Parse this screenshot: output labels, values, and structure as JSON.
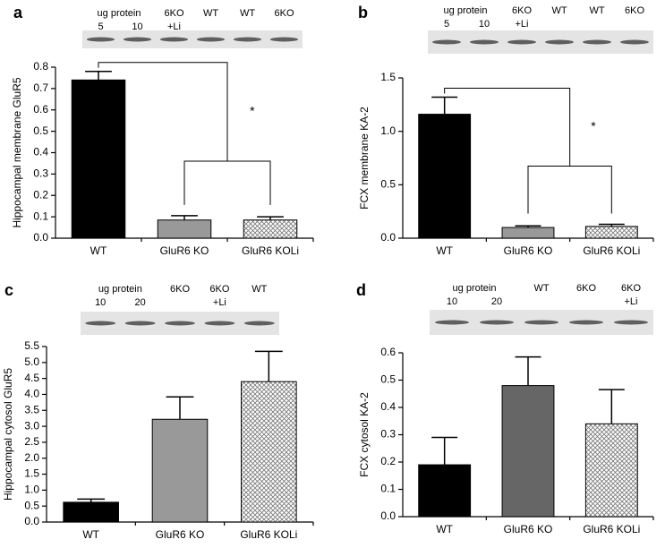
{
  "chart_data": [
    {
      "type": "bar",
      "panel_label": "a",
      "ylabel": "Hippocampal membrane GluR5",
      "categories": [
        "WT",
        "GluR6 KO",
        "GluR6 KOLi"
      ],
      "values": [
        0.74,
        0.085,
        0.085
      ],
      "errors": [
        0.04,
        0.02,
        0.015
      ],
      "colors": [
        "#000000",
        "#999999",
        "#ffffff"
      ],
      "hatch": [
        false,
        false,
        true
      ],
      "ylim": [
        0,
        0.8
      ],
      "yticks": [
        {
          "value": 0,
          "label": "0.0"
        },
        0.1,
        0.2,
        0.3,
        0.4,
        0.5,
        0.6,
        0.7,
        0.8
      ],
      "significance": "*",
      "blot_header": "ug protein",
      "lanes": [
        [
          "5"
        ],
        [
          "10"
        ],
        [
          "6KO",
          "+Li"
        ],
        [
          "WT"
        ],
        [
          "WT"
        ],
        [
          "6KO"
        ]
      ]
    },
    {
      "type": "bar",
      "panel_label": "b",
      "ylabel": "FCX membrane KA-2",
      "categories": [
        "WT",
        "GluR6 KO",
        "GluR6 KOLi"
      ],
      "values": [
        1.16,
        0.1,
        0.11
      ],
      "errors": [
        0.16,
        0.015,
        0.02
      ],
      "colors": [
        "#000000",
        "#999999",
        "#ffffff"
      ],
      "hatch": [
        false,
        false,
        true
      ],
      "ylim": [
        0,
        1.5
      ],
      "yticks": [
        {
          "value": 0,
          "label": "0.0"
        },
        0.5,
        {
          "value": 1,
          "label": "1.0"
        },
        1.5
      ],
      "significance": "*",
      "blot_header": "ug protein",
      "lanes": [
        [
          "5"
        ],
        [
          "10"
        ],
        [
          "6KO",
          "+Li"
        ],
        [
          "WT"
        ],
        [
          "WT"
        ],
        [
          "6KO"
        ]
      ]
    },
    {
      "type": "bar",
      "panel_label": "c",
      "ylabel": "Hippocampal cytosol GluR5",
      "categories": [
        "WT",
        "GluR6 KO",
        "GluR6 KOLi"
      ],
      "values": [
        0.62,
        3.22,
        4.4
      ],
      "errors": [
        0.1,
        0.7,
        0.95
      ],
      "colors": [
        "#000000",
        "#999999",
        "#ffffff"
      ],
      "hatch": [
        false,
        false,
        true
      ],
      "ylim": [
        0,
        5.5
      ],
      "yticks": [
        {
          "value": 0,
          "label": "0.0"
        },
        0.5,
        {
          "value": 1,
          "label": "1.0"
        },
        1.5,
        {
          "value": 2,
          "label": "2.0"
        },
        2.5,
        {
          "value": 3,
          "label": "3.0"
        },
        3.5,
        {
          "value": 4,
          "label": "4.0"
        },
        4.5,
        {
          "value": 5,
          "label": "5.0"
        },
        5.5
      ],
      "blot_header": "ug protein",
      "lanes": [
        [
          "10"
        ],
        [
          "20"
        ],
        [
          "6KO"
        ],
        [
          "6KO",
          "+Li"
        ],
        [
          "WT"
        ]
      ]
    },
    {
      "type": "bar",
      "panel_label": "d",
      "ylabel": "FCX cytosol KA-2",
      "categories": [
        "WT",
        "GluR6 KO",
        "GluR6 KOLi"
      ],
      "values": [
        0.19,
        0.48,
        0.34
      ],
      "errors": [
        0.1,
        0.105,
        0.125
      ],
      "colors": [
        "#000000",
        "#666666",
        "#ffffff"
      ],
      "hatch": [
        false,
        false,
        true
      ],
      "ylim": [
        0,
        0.6
      ],
      "yticks": [
        {
          "value": 0,
          "label": "0.0"
        },
        0.1,
        0.2,
        0.3,
        0.4,
        0.5,
        0.6
      ],
      "blot_header": "ug protein",
      "lanes": [
        [
          "10"
        ],
        [
          "20"
        ],
        [
          "WT"
        ],
        [
          "6KO"
        ],
        [
          "6KO",
          "+Li"
        ]
      ]
    }
  ]
}
